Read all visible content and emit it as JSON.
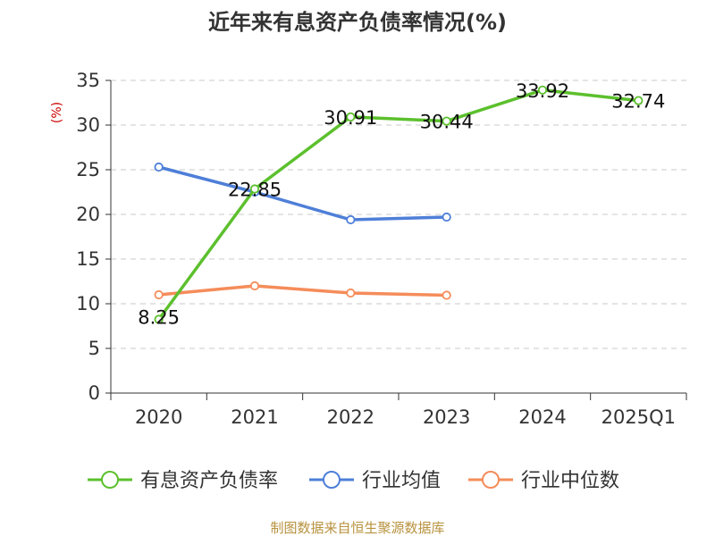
{
  "chart_data": {
    "type": "line",
    "title": "近年来有息资产负债率情况(%)",
    "ylabel": "(%)",
    "xlabel": "",
    "categories": [
      "2020",
      "2021",
      "2022",
      "2023",
      "2024",
      "2025Q1"
    ],
    "ylim": [
      0,
      35
    ],
    "yticks": [
      0,
      5,
      10,
      15,
      20,
      25,
      30,
      35
    ],
    "grid": "horizontal-dashed",
    "legend_position": "bottom",
    "series": [
      {
        "name": "有息资产负债率",
        "color": "#5cc02d",
        "values": [
          8.25,
          22.85,
          30.91,
          30.44,
          33.92,
          32.74
        ],
        "labels": [
          "8.25",
          "22.85",
          "30.91",
          "30.44",
          "33.92",
          "32.74"
        ]
      },
      {
        "name": "行业均值",
        "color": "#4e7fd8",
        "values": [
          25.3,
          22.5,
          19.4,
          19.7,
          null,
          null
        ],
        "labels": []
      },
      {
        "name": "行业中位数",
        "color": "#f58c5a",
        "values": [
          11.0,
          12.0,
          11.2,
          10.95,
          null,
          null
        ],
        "labels": []
      }
    ]
  },
  "footer": {
    "source": "制图数据来自恒生聚源数据库"
  }
}
